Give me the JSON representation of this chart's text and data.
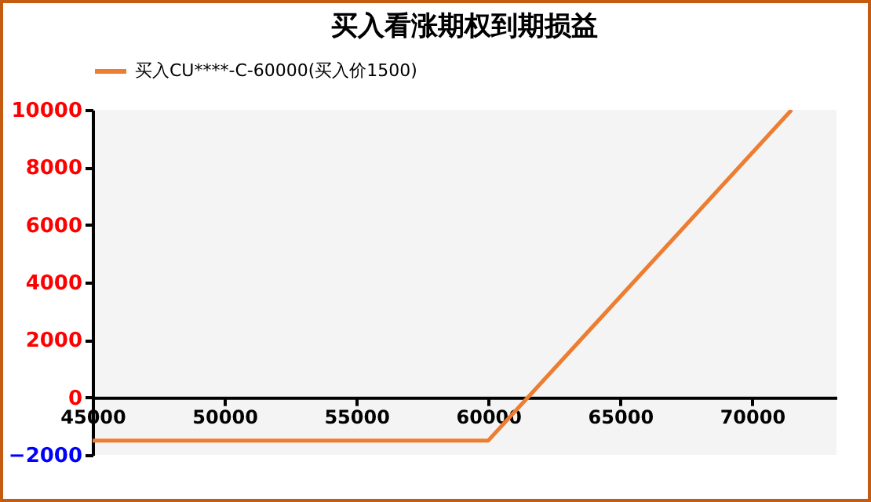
{
  "chart_data": {
    "type": "line",
    "title": "买入看涨期权到期损益",
    "x": [
      45000,
      60000,
      71500
    ],
    "series": [
      {
        "name": "买入CU****-C-60000(买入价1500)",
        "color": "#ed7d31",
        "values": [
          -1500,
          -1500,
          10000
        ]
      }
    ],
    "xlim": [
      45000,
      73200
    ],
    "xticks": [
      45000,
      50000,
      55000,
      60000,
      65000,
      70000
    ],
    "ylim": [
      -2000,
      10000
    ],
    "yticks": [
      -2000,
      0,
      2000,
      4000,
      6000,
      8000,
      10000
    ],
    "legend": "top",
    "grid": false,
    "marker": "none",
    "line_style": "solid"
  }
}
